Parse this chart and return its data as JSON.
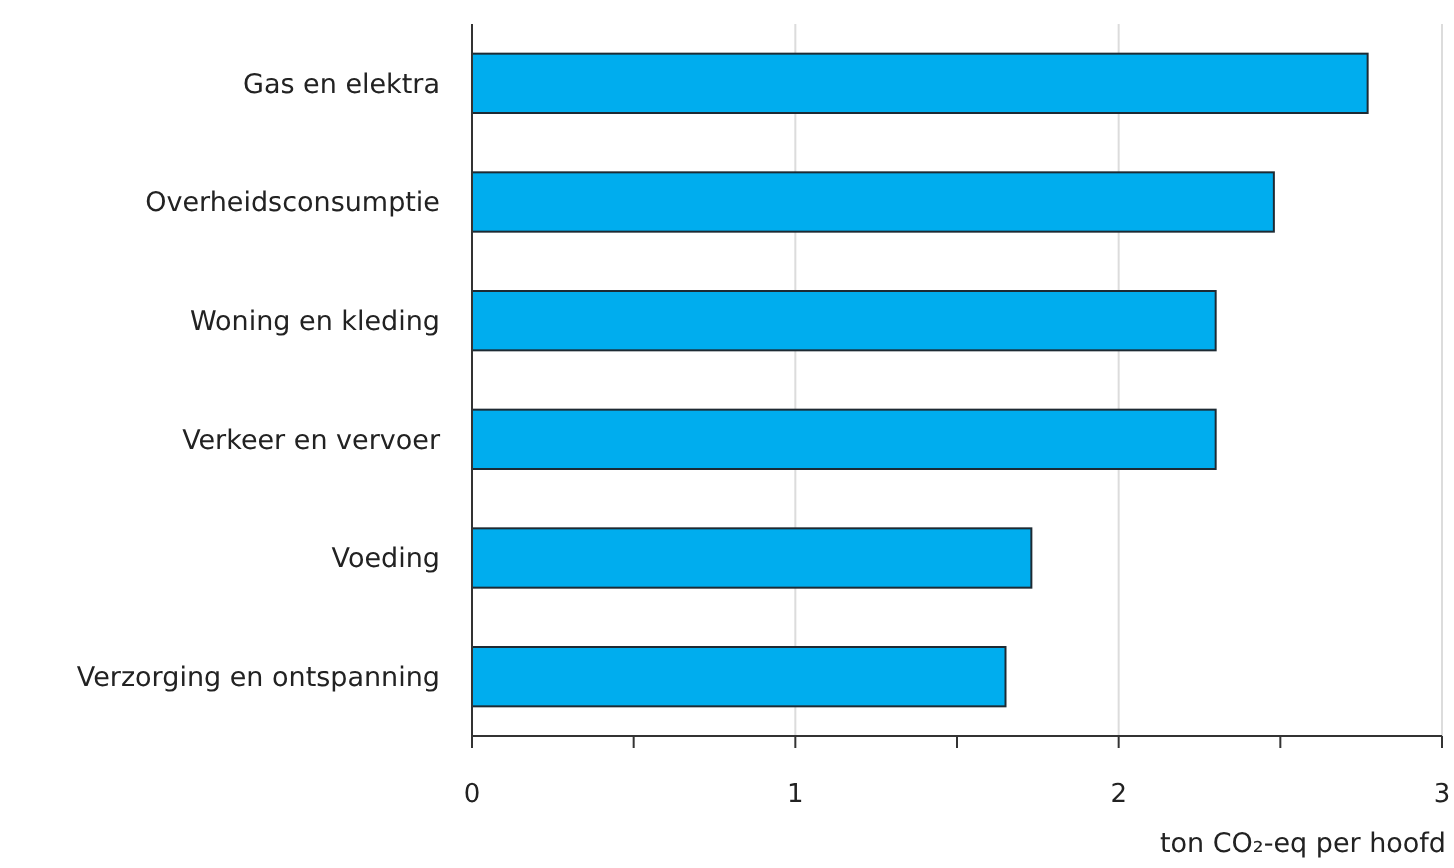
{
  "chart_data": {
    "type": "bar",
    "orientation": "horizontal",
    "categories": [
      "Gas en elektra",
      "Overheidsconsumptie",
      "Woning en kleding",
      "Verkeer en vervoer",
      "Voeding",
      "Verzorging en ontspanning"
    ],
    "values": [
      2.77,
      2.48,
      2.3,
      2.3,
      1.73,
      1.65
    ],
    "color": "#00adee",
    "xlabel": "ton CO₂-eq per hoofd",
    "xlim": [
      0,
      3
    ],
    "xticks": [
      0,
      {
        "value": 0.5,
        "label": null
      },
      1,
      {
        "value": 1.5,
        "label": null
      },
      2,
      {
        "value": 2.5,
        "label": null
      },
      3
    ],
    "grid": "x"
  }
}
